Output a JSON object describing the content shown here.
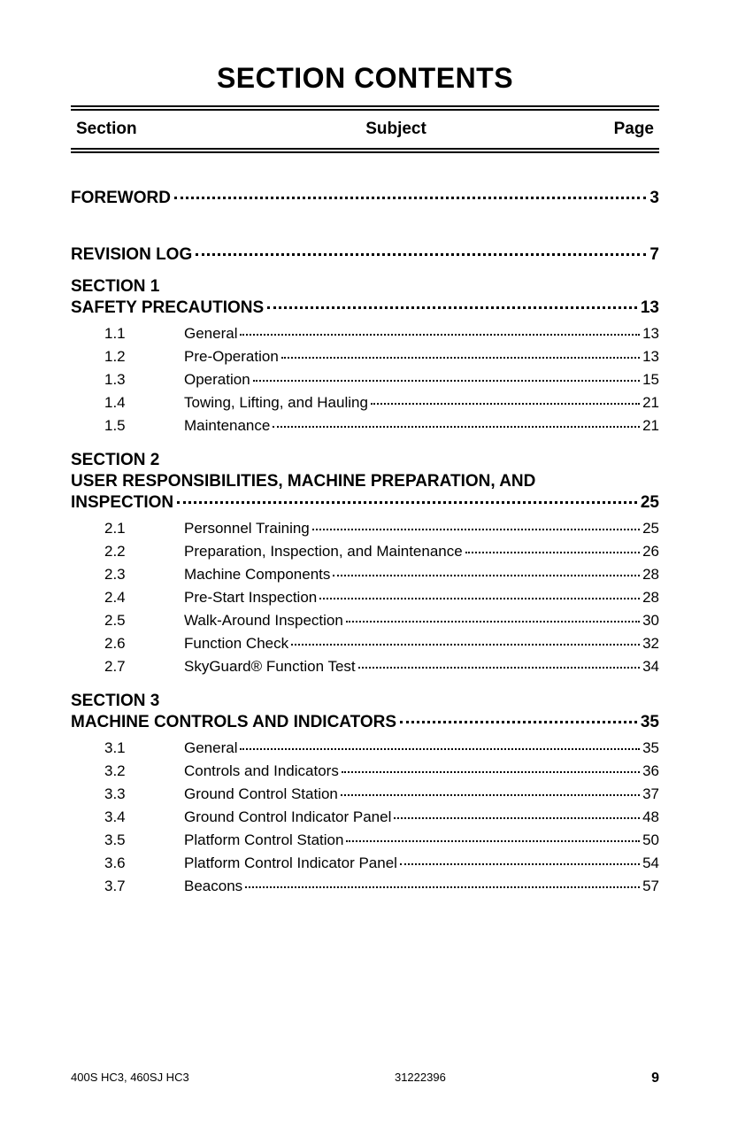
{
  "title": "SECTION CONTENTS",
  "headers": {
    "section": "Section",
    "subject": "Subject",
    "page": "Page"
  },
  "top_entries": [
    {
      "label": "FOREWORD",
      "page": "3"
    },
    {
      "label": "REVISION LOG",
      "page": "7"
    }
  ],
  "sections": [
    {
      "section_label": "SECTION 1",
      "title": "SAFETY PRECAUTIONS",
      "page": "13",
      "items": [
        {
          "num": "1.1",
          "label": "General",
          "page": "13"
        },
        {
          "num": "1.2",
          "label": "Pre-Operation",
          "page": "13"
        },
        {
          "num": "1.3",
          "label": "Operation",
          "page": "15"
        },
        {
          "num": "1.4",
          "label": "Towing, Lifting, and Hauling",
          "page": "21"
        },
        {
          "num": "1.5",
          "label": "Maintenance",
          "page": "21"
        }
      ]
    },
    {
      "section_label": "SECTION 2",
      "title_line1": "USER RESPONSIBILITIES, MACHINE PREPARATION, AND",
      "title_line2": "INSPECTION",
      "page": "25",
      "items": [
        {
          "num": "2.1",
          "label": "Personnel Training",
          "page": "25"
        },
        {
          "num": "2.2",
          "label": "Preparation, Inspection, and Maintenance",
          "page": "26"
        },
        {
          "num": "2.3",
          "label": "Machine Components",
          "page": "28"
        },
        {
          "num": "2.4",
          "label": "Pre-Start Inspection",
          "page": "28"
        },
        {
          "num": "2.5",
          "label": "Walk-Around Inspection",
          "page": "30"
        },
        {
          "num": "2.6",
          "label": "Function Check",
          "page": "32"
        },
        {
          "num": "2.7",
          "label": "SkyGuard® Function Test",
          "page": "34"
        }
      ]
    },
    {
      "section_label": "SECTION 3",
      "title": "MACHINE CONTROLS AND INDICATORS",
      "page": "35",
      "items": [
        {
          "num": "3.1",
          "label": "General",
          "page": "35"
        },
        {
          "num": "3.2",
          "label": "Controls and Indicators",
          "page": "36"
        },
        {
          "num": "3.3",
          "label": "Ground Control Station",
          "page": "37"
        },
        {
          "num": "3.4",
          "label": "Ground Control Indicator Panel",
          "page": "48"
        },
        {
          "num": "3.5",
          "label": "Platform Control Station",
          "page": "50"
        },
        {
          "num": "3.6",
          "label": "Platform Control Indicator Panel",
          "page": "54"
        },
        {
          "num": "3.7",
          "label": "Beacons",
          "page": "57"
        }
      ]
    }
  ],
  "footer": {
    "model": "400S HC3, 460SJ HC3",
    "docnum": "31222396",
    "pagenum": "9"
  }
}
